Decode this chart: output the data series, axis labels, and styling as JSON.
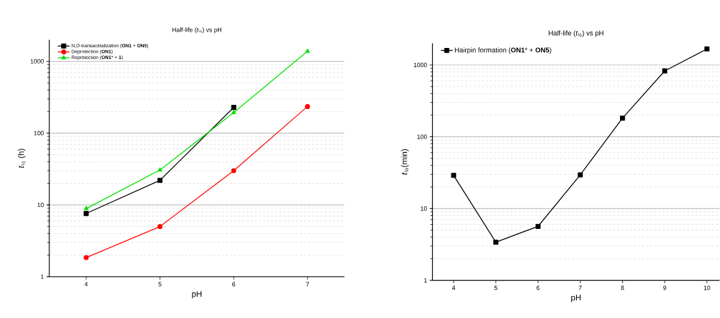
{
  "chart_data": [
    {
      "type": "line",
      "title": "Half-life (*t*$_{½}$) vs pH",
      "xlabel": "pH",
      "ylabel": "*t*$_{½}$ (h)",
      "x": [
        4,
        5,
        6,
        7
      ],
      "xlim": [
        3.5,
        7.5
      ],
      "ylim": [
        1,
        2000
      ],
      "xticks": [
        4,
        5,
        6,
        7
      ],
      "yticks": [
        1,
        10,
        100,
        1000
      ],
      "log": "y",
      "grid": "y",
      "legend": "top left",
      "line_style": "solid",
      "series": [
        {
          "name": "N,O-transacetalization (**ON1** + **ON5**)",
          "color": "#000000",
          "marker": "square",
          "values": [
            7.6,
            22,
            228,
            null
          ]
        },
        {
          "name": "Deprotection (**ON1**)",
          "color": "#ff0000",
          "marker": "circle",
          "values": [
            1.85,
            5,
            30,
            235
          ]
        },
        {
          "name": "Reprotection (**ON1*** + **1**)",
          "color": "#00e000",
          "marker": "triangle",
          "values": [
            8.9,
            30.7,
            193,
            1380
          ]
        }
      ]
    },
    {
      "type": "line",
      "title": "Half-life (*t*$_{½}$) vs pH",
      "xlabel": "pH",
      "ylabel": "*t*$_{½}$(min)",
      "x": [
        4,
        5,
        6,
        7,
        8,
        9,
        10
      ],
      "xlim": [
        3.5,
        10.3
      ],
      "ylim": [
        1,
        2000
      ],
      "xticks": [
        4,
        5,
        6,
        7,
        8,
        9,
        10
      ],
      "yticks": [
        1,
        10,
        100,
        1000
      ],
      "log": "y",
      "grid": "y",
      "legend": "top left",
      "line_style": "solid",
      "series": [
        {
          "name": "Hairpin formation (**ON1*** + **ON5**)",
          "color": "#000000",
          "marker": "square",
          "values": [
            29,
            3.4,
            5.65,
            29.5,
            182,
            826,
            1670
          ]
        }
      ]
    }
  ]
}
